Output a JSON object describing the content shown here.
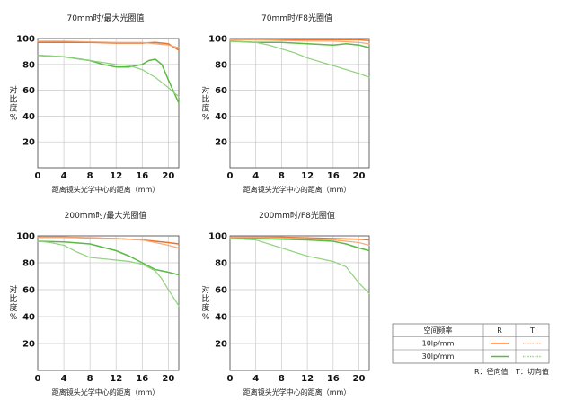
{
  "chart_data": [
    {
      "type": "line",
      "title": "70mm时/最大光圈值",
      "xlabel": "距离镜头光学中心的距离（mm）",
      "ylabel": "对比度%",
      "xlim": [
        0,
        21.6
      ],
      "ylim": [
        0,
        100
      ],
      "xticks": [
        0,
        4,
        8,
        12,
        16,
        20
      ],
      "yticks": [
        20,
        40,
        60,
        80,
        100
      ],
      "series": [
        {
          "freq": "10lp/mm",
          "dir": "R",
          "x": [
            0,
            4,
            8,
            12,
            16,
            18,
            20,
            21.6
          ],
          "y": [
            97,
            97,
            97,
            96.5,
            96.5,
            97,
            96,
            91
          ]
        },
        {
          "freq": "10lp/mm",
          "dir": "T",
          "x": [
            0,
            4,
            8,
            12,
            16,
            18,
            20,
            21.6
          ],
          "y": [
            98,
            98,
            97.5,
            97,
            97,
            96,
            95,
            93
          ]
        },
        {
          "freq": "30lp/mm",
          "dir": "R",
          "x": [
            0,
            4,
            8,
            10,
            12,
            14,
            16,
            17,
            18,
            19,
            20,
            21.6
          ],
          "y": [
            87,
            86,
            83,
            80,
            78,
            78,
            80,
            83,
            84,
            80,
            68,
            50
          ]
        },
        {
          "freq": "30lp/mm",
          "dir": "T",
          "x": [
            0,
            4,
            8,
            12,
            14,
            16,
            18,
            20,
            21.6
          ],
          "y": [
            87,
            86,
            83,
            80,
            79,
            76,
            70,
            62,
            55
          ]
        }
      ]
    },
    {
      "type": "line",
      "title": "70mm时/F8光圈值",
      "xlabel": "距离镜头光学中心的距离（mm）",
      "ylabel": "对比度%",
      "xlim": [
        0,
        21.6
      ],
      "ylim": [
        0,
        100
      ],
      "xticks": [
        0,
        4,
        8,
        12,
        16,
        20
      ],
      "yticks": [
        20,
        40,
        60,
        80,
        100
      ],
      "series": [
        {
          "freq": "10lp/mm",
          "dir": "R",
          "x": [
            0,
            4,
            8,
            12,
            16,
            20,
            21.6
          ],
          "y": [
            99,
            99,
            99,
            99,
            99,
            99,
            98.5
          ]
        },
        {
          "freq": "10lp/mm",
          "dir": "T",
          "x": [
            0,
            4,
            8,
            12,
            16,
            20,
            21.6
          ],
          "y": [
            99,
            99,
            98.5,
            98,
            98,
            97,
            96
          ]
        },
        {
          "freq": "30lp/mm",
          "dir": "R",
          "x": [
            0,
            4,
            8,
            12,
            16,
            18,
            20,
            21.6
          ],
          "y": [
            98,
            97,
            97,
            96,
            95,
            96,
            95,
            93
          ]
        },
        {
          "freq": "30lp/mm",
          "dir": "T",
          "x": [
            0,
            4,
            6,
            8,
            10,
            12,
            16,
            20,
            21.6
          ],
          "y": [
            98,
            97,
            95,
            92,
            89,
            85,
            79,
            73,
            70
          ]
        }
      ]
    },
    {
      "type": "line",
      "title": "200mm时/最大光圈值",
      "xlabel": "距离镜头光学中心的距离（mm）",
      "ylabel": "对比度%",
      "xlim": [
        0,
        21.6
      ],
      "ylim": [
        0,
        100
      ],
      "xticks": [
        0,
        4,
        8,
        12,
        16,
        20
      ],
      "yticks": [
        20,
        40,
        60,
        80,
        100
      ],
      "series": [
        {
          "freq": "10lp/mm",
          "dir": "R",
          "x": [
            0,
            4,
            8,
            12,
            16,
            18,
            20,
            21.6
          ],
          "y": [
            99,
            99,
            98.5,
            98,
            97,
            96,
            95,
            94
          ]
        },
        {
          "freq": "10lp/mm",
          "dir": "T",
          "x": [
            0,
            4,
            8,
            12,
            16,
            18,
            20,
            21.6
          ],
          "y": [
            99,
            99,
            98.5,
            98,
            97,
            95,
            93,
            91
          ]
        },
        {
          "freq": "30lp/mm",
          "dir": "R",
          "x": [
            0,
            4,
            8,
            12,
            14,
            16,
            18,
            20,
            21.6
          ],
          "y": [
            96,
            95.5,
            94,
            89,
            85,
            80,
            75,
            73,
            71
          ]
        },
        {
          "freq": "30lp/mm",
          "dir": "T",
          "x": [
            0,
            2,
            4,
            6,
            8,
            12,
            14,
            16,
            18,
            19,
            20,
            21.6
          ],
          "y": [
            96,
            95,
            93,
            88,
            84,
            82,
            81,
            79,
            74,
            68,
            60,
            48
          ]
        }
      ]
    },
    {
      "type": "line",
      "title": "200mm时/F8光圈值",
      "xlabel": "距离镜头光学中心的距离（mm）",
      "ylabel": "对比度%",
      "xlim": [
        0,
        21.6
      ],
      "ylim": [
        0,
        100
      ],
      "xticks": [
        0,
        4,
        8,
        12,
        16,
        20
      ],
      "yticks": [
        20,
        40,
        60,
        80,
        100
      ],
      "series": [
        {
          "freq": "10lp/mm",
          "dir": "R",
          "x": [
            0,
            4,
            8,
            12,
            16,
            20,
            21.6
          ],
          "y": [
            99,
            99,
            99,
            98.5,
            98,
            97.5,
            97
          ]
        },
        {
          "freq": "10lp/mm",
          "dir": "T",
          "x": [
            0,
            4,
            8,
            12,
            16,
            20,
            21.6
          ],
          "y": [
            99,
            99,
            98.5,
            98,
            97,
            95,
            93
          ]
        },
        {
          "freq": "30lp/mm",
          "dir": "R",
          "x": [
            0,
            4,
            8,
            12,
            16,
            18,
            20,
            21.6
          ],
          "y": [
            98,
            98,
            97.5,
            97,
            96,
            94,
            91,
            89
          ]
        },
        {
          "freq": "30lp/mm",
          "dir": "T",
          "x": [
            0,
            4,
            6,
            8,
            10,
            12,
            14,
            16,
            18,
            20,
            21.6
          ],
          "y": [
            98,
            97,
            94,
            91,
            88,
            85,
            83,
            81,
            77,
            65,
            57
          ]
        }
      ]
    }
  ],
  "legend": {
    "header_freq": "空间频率",
    "header_r": "R",
    "header_t": "T",
    "rows": [
      "10lp/mm",
      "30lp/mm"
    ],
    "note_r": "R：径向值",
    "note_t": "T：切向值"
  },
  "colors": {
    "10lp/mm": "#e8742e",
    "30lp/mm": "#5bb945",
    "30lp/mm-T": "#8fd17c"
  }
}
